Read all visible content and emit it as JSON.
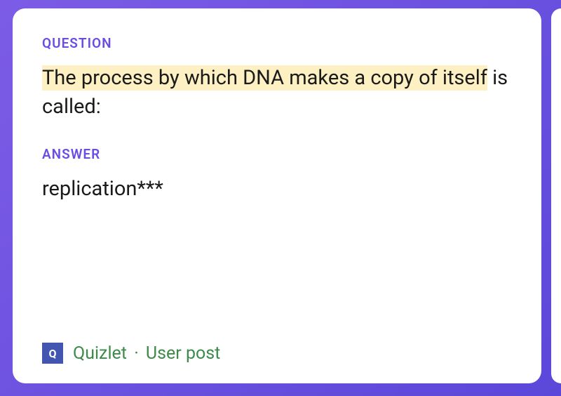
{
  "card": {
    "question_label": "QUESTION",
    "question_highlight_part": "The process by which DNA makes a copy of itself",
    "question_rest": " is called:",
    "answer_label": "ANSWER",
    "answer_text": "replication***",
    "source": {
      "icon_letter": "Q",
      "site_name": "Quizlet",
      "separator": "·",
      "post_type": "User post"
    }
  },
  "colors": {
    "background_gradient_start": "#7c5ce6",
    "background_gradient_end": "#5b47d9",
    "card_background": "#ffffff",
    "label_color": "#6b4de6",
    "text_color": "#1a1a1a",
    "highlight_background": "#fdf0c2",
    "source_icon_bg": "#4255b0",
    "source_text_color": "#3d8b4a"
  }
}
